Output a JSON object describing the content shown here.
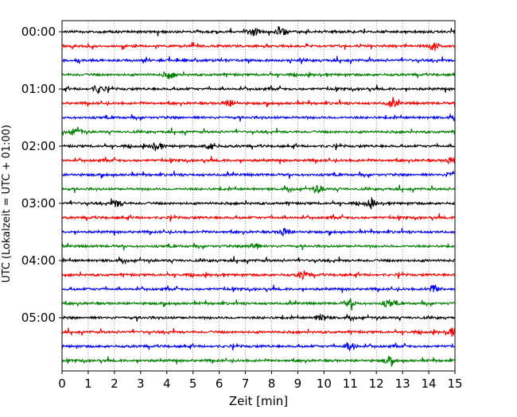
{
  "chart_data": {
    "type": "line",
    "title": "",
    "xlabel": "Zeit  [min]",
    "ylabel": "UTC (Lokalzeit = UTC + 01:00)",
    "xlim": [
      0,
      15
    ],
    "x_ticks": [
      "0",
      "1",
      "2",
      "3",
      "4",
      "5",
      "6",
      "7",
      "8",
      "9",
      "10",
      "11",
      "12",
      "13",
      "14",
      "15"
    ],
    "y_ticks": [
      "00:00",
      "01:00",
      "02:00",
      "03:00",
      "04:00",
      "05:00"
    ],
    "trace_interval_min": 15,
    "trace_count": 24,
    "trace_colors": [
      "#000000",
      "#ff0000",
      "#0000ff",
      "#008000"
    ],
    "grid": "vertical dotted lines at each minute",
    "events": [
      {
        "row": 0,
        "x": 7.3
      },
      {
        "row": 0,
        "x": 8.4
      },
      {
        "row": 1,
        "x": 14.2
      },
      {
        "row": 3,
        "x": 4.1
      },
      {
        "row": 4,
        "x": 1.4
      },
      {
        "row": 5,
        "x": 6.4
      },
      {
        "row": 5,
        "x": 12.6
      },
      {
        "row": 7,
        "x": 0.55
      },
      {
        "row": 8,
        "x": 3.6
      },
      {
        "row": 8,
        "x": 5.7
      },
      {
        "row": 9,
        "x": 14.9
      },
      {
        "row": 10,
        "x": 14.9
      },
      {
        "row": 11,
        "x": 9.8
      },
      {
        "row": 12,
        "x": 2.1
      },
      {
        "row": 12,
        "x": 11.8
      },
      {
        "row": 14,
        "x": 8.5
      },
      {
        "row": 15,
        "x": 7.3
      },
      {
        "row": 17,
        "x": 9.2
      },
      {
        "row": 18,
        "x": 14.2
      },
      {
        "row": 19,
        "x": 11.0
      },
      {
        "row": 19,
        "x": 12.5
      },
      {
        "row": 20,
        "x": 9.9
      },
      {
        "row": 21,
        "x": 14.9
      },
      {
        "row": 22,
        "x": 11.0
      },
      {
        "row": 23,
        "x": 12.5
      }
    ]
  }
}
